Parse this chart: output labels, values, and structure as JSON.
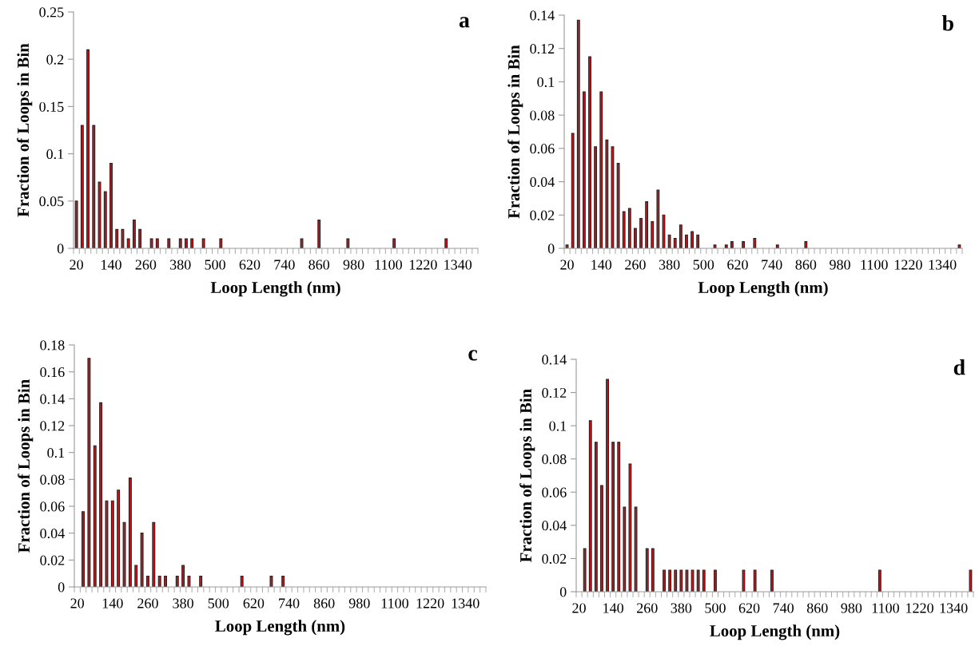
{
  "chart_data": [
    {
      "type": "bar",
      "title": "a",
      "xlabel": "Loop Length (nm)",
      "ylabel": "Fraction of Loops in Bin",
      "categories": [
        "20",
        null,
        null,
        null,
        null,
        null,
        "140",
        null,
        null,
        null,
        null,
        null,
        "260",
        null,
        null,
        null,
        null,
        null,
        "380",
        null,
        null,
        null,
        null,
        null,
        "500",
        null,
        null,
        null,
        null,
        null,
        "620",
        null,
        null,
        null,
        null,
        null,
        "740",
        null,
        null,
        null,
        null,
        null,
        "860",
        null,
        null,
        null,
        null,
        null,
        "980",
        null,
        null,
        null,
        null,
        null,
        "1100",
        null,
        null,
        null,
        null,
        null,
        "1220",
        null,
        null,
        null,
        null,
        null,
        "1340",
        null,
        null,
        null
      ],
      "series": [
        {
          "color": "#c8161d",
          "values": [
            0.05,
            0.13,
            0.21,
            0.13,
            0.07,
            0.06,
            0.09,
            0.02,
            0.02,
            0.01,
            0.03,
            0.02,
            0,
            0.01,
            0.01,
            0,
            0.01,
            0,
            0.01,
            0.01,
            0.01,
            0,
            0.01,
            0,
            0,
            0.01,
            0,
            0,
            0,
            0,
            0,
            0,
            0,
            0,
            0,
            0,
            0,
            0,
            0,
            0.01,
            0,
            0,
            0.03,
            0,
            0,
            0,
            0,
            0.01,
            0,
            0,
            0,
            0,
            0,
            0,
            0,
            0.01,
            0,
            0,
            0,
            0,
            0,
            0,
            0,
            0,
            0.01,
            0,
            0,
            0,
            0,
            0
          ]
        }
      ],
      "ylim": [
        0,
        0.25
      ],
      "yticks": [
        0,
        0.05,
        0.1,
        0.15,
        0.2,
        0.25
      ],
      "grid": false
    },
    {
      "type": "bar",
      "title": "b",
      "xlabel": "Loop Length (nm)",
      "ylabel": "Fraction of Loops in Bin",
      "categories": [
        "20",
        null,
        null,
        null,
        null,
        null,
        "140",
        null,
        null,
        null,
        null,
        null,
        "260",
        null,
        null,
        null,
        null,
        null,
        "380",
        null,
        null,
        null,
        null,
        null,
        "500",
        null,
        null,
        null,
        null,
        null,
        "620",
        null,
        null,
        null,
        null,
        null,
        "740",
        null,
        null,
        null,
        null,
        null,
        "860",
        null,
        null,
        null,
        null,
        null,
        "980",
        null,
        null,
        null,
        null,
        null,
        "1100",
        null,
        null,
        null,
        null,
        null,
        "1220",
        null,
        null,
        null,
        null,
        null,
        "1340",
        null,
        null,
        null
      ],
      "series": [
        {
          "color": "#c8161d",
          "values": [
            0.002,
            0.069,
            0.137,
            0.094,
            0.115,
            0.061,
            0.094,
            0.065,
            0.061,
            0.051,
            0.022,
            0.024,
            0.012,
            0.018,
            0.028,
            0.016,
            0.035,
            0.02,
            0.008,
            0.006,
            0.014,
            0.008,
            0.01,
            0.008,
            0,
            0,
            0.002,
            0,
            0.002,
            0.004,
            0,
            0.004,
            0,
            0.006,
            0,
            0,
            0,
            0.002,
            0,
            0,
            0,
            0,
            0.004,
            0,
            0,
            0,
            0,
            0,
            0,
            0,
            0,
            0,
            0,
            0,
            0,
            0,
            0,
            0,
            0,
            0,
            0,
            0,
            0,
            0,
            0,
            0,
            0,
            0,
            0,
            0.002
          ]
        }
      ],
      "ylim": [
        0,
        0.14
      ],
      "yticks": [
        0,
        0.02,
        0.04,
        0.06,
        0.08,
        0.1,
        0.12,
        0.14
      ],
      "grid": false
    },
    {
      "type": "bar",
      "title": "c",
      "xlabel": "Loop Length (nm)",
      "ylabel": "Fraction of Loops in Bin",
      "categories": [
        "20",
        null,
        null,
        null,
        null,
        null,
        "140",
        null,
        null,
        null,
        null,
        null,
        "260",
        null,
        null,
        null,
        null,
        null,
        "380",
        null,
        null,
        null,
        null,
        null,
        "500",
        null,
        null,
        null,
        null,
        null,
        "620",
        null,
        null,
        null,
        null,
        null,
        "740",
        null,
        null,
        null,
        null,
        null,
        "860",
        null,
        null,
        null,
        null,
        null,
        "980",
        null,
        null,
        null,
        null,
        null,
        "1100",
        null,
        null,
        null,
        null,
        null,
        "1220",
        null,
        null,
        null,
        null,
        null,
        "1340",
        null,
        null,
        null
      ],
      "series": [
        {
          "color": "#c8161d",
          "values": [
            0,
            0.056,
            0.17,
            0.105,
            0.137,
            0.064,
            0.064,
            0.072,
            0.048,
            0.081,
            0.016,
            0.04,
            0.008,
            0.048,
            0.008,
            0.008,
            0,
            0.008,
            0.016,
            0.008,
            0,
            0.008,
            0,
            0,
            0,
            0,
            0,
            0,
            0.008,
            0,
            0,
            0,
            0,
            0.008,
            0,
            0.008,
            0,
            0,
            0,
            0,
            0,
            0,
            0,
            0,
            0,
            0,
            0,
            0,
            0,
            0,
            0,
            0,
            0,
            0,
            0,
            0,
            0,
            0,
            0,
            0,
            0,
            0,
            0,
            0,
            0,
            0,
            0,
            0,
            0,
            0
          ]
        }
      ],
      "ylim": [
        0,
        0.18
      ],
      "yticks": [
        0,
        0.02,
        0.04,
        0.06,
        0.08,
        0.1,
        0.12,
        0.14,
        0.16,
        0.18
      ],
      "grid": false
    },
    {
      "type": "bar",
      "title": "d",
      "xlabel": "Loop Length (nm)",
      "ylabel": "Fraction of Loops in Bin",
      "categories": [
        "20",
        null,
        null,
        null,
        null,
        null,
        "140",
        null,
        null,
        null,
        null,
        null,
        "260",
        null,
        null,
        null,
        null,
        null,
        "380",
        null,
        null,
        null,
        null,
        null,
        "500",
        null,
        null,
        null,
        null,
        null,
        "620",
        null,
        null,
        null,
        null,
        null,
        "740",
        null,
        null,
        null,
        null,
        null,
        "860",
        null,
        null,
        null,
        null,
        null,
        "980",
        null,
        null,
        null,
        null,
        null,
        "1100",
        null,
        null,
        null,
        null,
        null,
        "1220",
        null,
        null,
        null,
        null,
        null,
        "1340",
        null,
        null,
        null
      ],
      "series": [
        {
          "color": "#c8161d",
          "values": [
            0,
            0.026,
            0.103,
            0.09,
            0.064,
            0.128,
            0.09,
            0.09,
            0.051,
            0.077,
            0.051,
            0,
            0.026,
            0.026,
            0,
            0.013,
            0.013,
            0.013,
            0.013,
            0.013,
            0.013,
            0.013,
            0.013,
            0,
            0.013,
            0,
            0,
            0,
            0,
            0.013,
            0,
            0.013,
            0,
            0,
            0.013,
            0,
            0,
            0,
            0,
            0,
            0,
            0,
            0,
            0,
            0,
            0,
            0,
            0,
            0,
            0,
            0,
            0,
            0,
            0.013,
            0,
            0,
            0,
            0,
            0,
            0,
            0,
            0,
            0,
            0,
            0,
            0,
            0,
            0,
            0,
            0.013
          ]
        }
      ],
      "ylim": [
        0,
        0.14
      ],
      "yticks": [
        0,
        0.02,
        0.04,
        0.06,
        0.08,
        0.1,
        0.12,
        0.14
      ],
      "grid": false
    }
  ]
}
